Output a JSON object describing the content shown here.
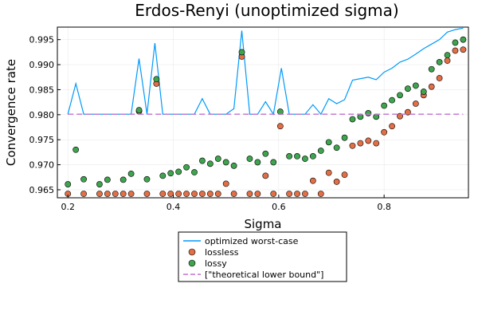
{
  "chart_data": {
    "type": "scatter",
    "title": "Erdos-Renyi (unoptimized sigma)",
    "xlabel": "Sigma",
    "ylabel": "Convergence rate",
    "xlim": [
      0.18,
      0.96
    ],
    "ylim": [
      0.9634,
      0.9975
    ],
    "xticks": [
      0.2,
      0.4,
      0.6,
      0.8
    ],
    "xtick_labels": [
      "0.2",
      "0.4",
      "0.6",
      "0.8"
    ],
    "yticks": [
      0.965,
      0.97,
      0.975,
      0.98,
      0.985,
      0.99,
      0.995
    ],
    "ytick_labels": [
      "0.965",
      "0.970",
      "0.975",
      "0.980",
      "0.985",
      "0.990",
      "0.995"
    ],
    "grid": true,
    "legend_placement": "bottom-center (outside)",
    "colors": {
      "optimized": "#009AFA",
      "lossless": "#E26F46",
      "lossy": "#3EA44E",
      "bound": "#C271D2"
    },
    "series": [
      {
        "name": "optimized worst-case",
        "type": "line",
        "x": [
          0.2,
          0.215,
          0.23,
          0.245,
          0.26,
          0.275,
          0.29,
          0.305,
          0.32,
          0.335,
          0.35,
          0.365,
          0.38,
          0.395,
          0.41,
          0.425,
          0.44,
          0.455,
          0.47,
          0.485,
          0.5,
          0.515,
          0.53,
          0.545,
          0.56,
          0.575,
          0.59,
          0.605,
          0.62,
          0.635,
          0.65,
          0.665,
          0.68,
          0.695,
          0.71,
          0.725,
          0.74,
          0.755,
          0.77,
          0.785,
          0.8,
          0.815,
          0.83,
          0.845,
          0.86,
          0.875,
          0.89,
          0.905,
          0.92,
          0.935,
          0.95
        ],
        "y": [
          0.9801,
          0.9862,
          0.9801,
          0.9801,
          0.9801,
          0.9801,
          0.9801,
          0.9801,
          0.9801,
          0.9912,
          0.9801,
          0.9943,
          0.9801,
          0.9801,
          0.9801,
          0.9801,
          0.9801,
          0.9832,
          0.9801,
          0.9801,
          0.9801,
          0.9812,
          0.9968,
          0.9801,
          0.9801,
          0.9826,
          0.9801,
          0.9893,
          0.9801,
          0.9801,
          0.9801,
          0.982,
          0.9801,
          0.9832,
          0.9822,
          0.983,
          0.9869,
          0.9872,
          0.9875,
          0.987,
          0.9885,
          0.9893,
          0.9905,
          0.9911,
          0.9921,
          0.9932,
          0.9941,
          0.995,
          0.9965,
          0.997,
          0.9973
        ]
      },
      {
        "name": "lossless",
        "type": "scatter",
        "x": [
          0.2,
          0.23,
          0.26,
          0.275,
          0.29,
          0.305,
          0.32,
          0.335,
          0.35,
          0.368,
          0.38,
          0.395,
          0.41,
          0.425,
          0.44,
          0.455,
          0.47,
          0.485,
          0.5,
          0.515,
          0.53,
          0.545,
          0.56,
          0.575,
          0.59,
          0.603,
          0.62,
          0.635,
          0.65,
          0.665,
          0.68,
          0.695,
          0.71,
          0.725,
          0.74,
          0.755,
          0.77,
          0.785,
          0.8,
          0.815,
          0.83,
          0.845,
          0.86,
          0.875,
          0.89,
          0.905,
          0.92,
          0.935,
          0.95
        ],
        "y": [
          0.9642,
          0.9642,
          0.9642,
          0.9642,
          0.9642,
          0.9642,
          0.9642,
          0.9807,
          0.9642,
          0.9862,
          0.9642,
          0.9642,
          0.9642,
          0.9642,
          0.9642,
          0.9642,
          0.9642,
          0.9642,
          0.9662,
          0.9642,
          0.9916,
          0.9642,
          0.9642,
          0.9678,
          0.9642,
          0.9777,
          0.9642,
          0.9642,
          0.9642,
          0.9668,
          0.9642,
          0.9684,
          0.9666,
          0.968,
          0.9738,
          0.9743,
          0.9748,
          0.9743,
          0.9765,
          0.9777,
          0.9797,
          0.9805,
          0.9822,
          0.9839,
          0.9856,
          0.9873,
          0.9908,
          0.9928,
          0.993
        ]
      },
      {
        "name": "lossy",
        "type": "scatter",
        "x": [
          0.2,
          0.215,
          0.23,
          0.26,
          0.275,
          0.305,
          0.32,
          0.335,
          0.35,
          0.368,
          0.38,
          0.395,
          0.41,
          0.425,
          0.44,
          0.455,
          0.47,
          0.485,
          0.5,
          0.515,
          0.53,
          0.545,
          0.56,
          0.575,
          0.59,
          0.603,
          0.62,
          0.635,
          0.65,
          0.665,
          0.68,
          0.695,
          0.71,
          0.725,
          0.74,
          0.755,
          0.77,
          0.785,
          0.8,
          0.815,
          0.83,
          0.845,
          0.86,
          0.875,
          0.89,
          0.905,
          0.92,
          0.935,
          0.95
        ],
        "y": [
          0.9661,
          0.973,
          0.9671,
          0.9661,
          0.967,
          0.967,
          0.9682,
          0.9809,
          0.9671,
          0.9871,
          0.9678,
          0.9683,
          0.9686,
          0.9695,
          0.9685,
          0.9708,
          0.9702,
          0.9712,
          0.9705,
          0.9698,
          0.9925,
          0.9712,
          0.9705,
          0.9722,
          0.9705,
          0.9806,
          0.9717,
          0.9717,
          0.9712,
          0.9717,
          0.9728,
          0.9745,
          0.9734,
          0.9754,
          0.9791,
          0.9796,
          0.9803,
          0.9796,
          0.9818,
          0.9829,
          0.9839,
          0.9852,
          0.9858,
          0.9846,
          0.9891,
          0.9905,
          0.9919,
          0.9944,
          0.995
        ]
      },
      {
        "name": "[\"theoretical lower bound\"]",
        "type": "line-dashed",
        "x": [
          0.2,
          0.95
        ],
        "y": [
          0.9801,
          0.9801
        ]
      }
    ]
  }
}
